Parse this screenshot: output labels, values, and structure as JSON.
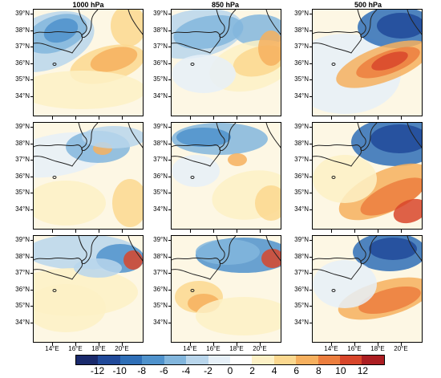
{
  "columns": [
    "1000 hPa",
    "850 hPa",
    "500 hPa"
  ],
  "lat_labels": [
    "39°N",
    "38°N",
    "37°N",
    "36°N",
    "35°N",
    "34°N"
  ],
  "lon_labels": [
    "14°E",
    "16°E",
    "18°E",
    "20°E"
  ],
  "colorbar": {
    "labels": [
      "-12",
      "-10",
      "-8",
      "-6",
      "-4",
      "-2",
      "0",
      "2",
      "4",
      "6",
      "8",
      "10",
      "12"
    ],
    "colors": [
      "#1a2a6c",
      "#214a9a",
      "#2f6fb7",
      "#4f92cc",
      "#82b6dd",
      "#b9d6ec",
      "#e6f0f8",
      "#ffffff",
      "#fdf1c6",
      "#fbd88f",
      "#f6b05e",
      "#ec7e3e",
      "#d8462b",
      "#ac1e22"
    ]
  },
  "colors": {
    "land_outline": "#222222"
  }
}
